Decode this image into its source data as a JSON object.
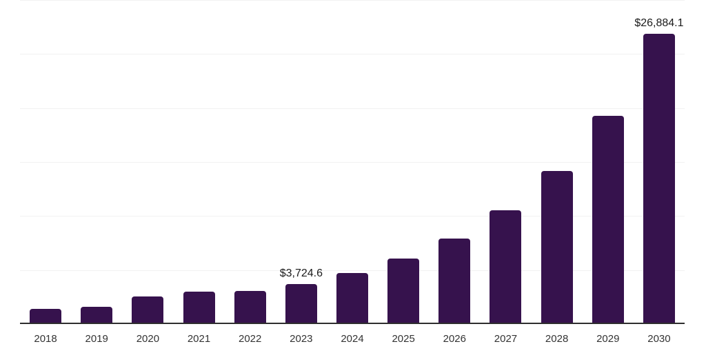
{
  "chart_data": {
    "type": "bar",
    "title": "",
    "xlabel": "",
    "ylabel": "",
    "categories": [
      "2018",
      "2019",
      "2020",
      "2021",
      "2022",
      "2023",
      "2024",
      "2025",
      "2026",
      "2027",
      "2028",
      "2029",
      "2030"
    ],
    "values": [
      1400,
      1600,
      2560,
      2990,
      3050,
      3724.6,
      4750,
      6080,
      7930,
      10530,
      14170,
      19280,
      26884.1
    ],
    "value_labels": {
      "2023": "$3,724.6",
      "2030": "$26,884.1"
    },
    "ylim": [
      0,
      30000
    ],
    "gridline_values": [
      5000,
      10000,
      15000,
      20000,
      25000,
      30000
    ],
    "grid": true,
    "legend": false
  },
  "style": {
    "bar_color": "#36124D",
    "axis_line_color": "#2e2e2e",
    "gridline_color": "#f2f2f2",
    "tick_label_color": "#333333",
    "value_label_color": "#1a1a1a",
    "background": "#ffffff"
  }
}
